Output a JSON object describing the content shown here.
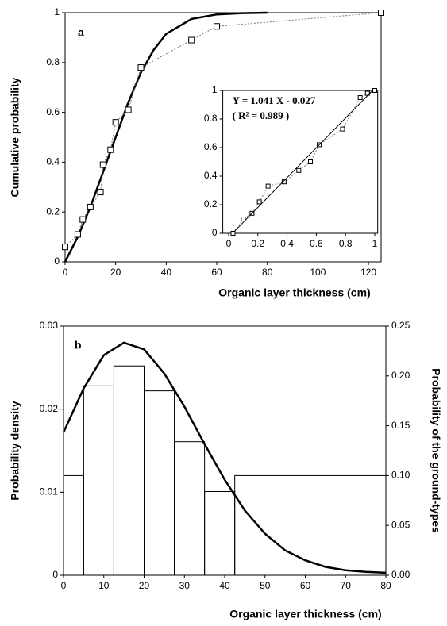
{
  "chart_data": [
    {
      "type": "line",
      "panel_label": "a",
      "xlabel": "Organic layer thickness (cm)",
      "ylabel": "Cumulative probability",
      "xlim": [
        0,
        125
      ],
      "ylim": [
        0,
        1
      ],
      "xticks": [
        0,
        20,
        40,
        60,
        80,
        100,
        120
      ],
      "yticks": [
        0,
        0.2,
        0.4,
        0.6,
        0.8,
        1
      ],
      "series": [
        {
          "color": "#000000",
          "style": "solid",
          "markers": false,
          "x": [
            0,
            5,
            10,
            15,
            20,
            25,
            30,
            35,
            40,
            50,
            60,
            70,
            80
          ],
          "values": [
            0,
            0.1,
            0.22,
            0.36,
            0.5,
            0.64,
            0.76,
            0.85,
            0.915,
            0.975,
            0.993,
            0.998,
            1
          ]
        },
        {
          "color": "#777777",
          "style": "dotted",
          "markers": true,
          "x": [
            0,
            5,
            7,
            10,
            14,
            15,
            18,
            20,
            25,
            30,
            50,
            60,
            125
          ],
          "values": [
            0.06,
            0.11,
            0.17,
            0.22,
            0.28,
            0.39,
            0.45,
            0.56,
            0.61,
            0.78,
            0.89,
            0.945,
            1
          ]
        }
      ]
    },
    {
      "type": "line",
      "annotations": [
        "Y = 1.041 X - 0.027",
        "( R² = 0.989 )"
      ],
      "xlim": [
        -0.04,
        1.02
      ],
      "ylim": [
        0,
        1
      ],
      "xticks": [
        0,
        0.2,
        0.4,
        0.6,
        0.8,
        1
      ],
      "yticks": [
        0,
        0.2,
        0.4,
        0.6,
        0.8,
        1
      ],
      "series": [
        {
          "color": "#777777",
          "style": "dotted",
          "markers": true,
          "x": [
            0.03,
            0.1,
            0.16,
            0.21,
            0.27,
            0.38,
            0.48,
            0.56,
            0.62,
            0.78,
            0.9,
            0.95,
            1
          ],
          "values": [
            0,
            0.1,
            0.14,
            0.22,
            0.33,
            0.36,
            0.44,
            0.5,
            0.62,
            0.73,
            0.95,
            0.98,
            1
          ]
        },
        {
          "color": "#000000",
          "style": "solid",
          "markers": false,
          "x": [
            0.03,
            0.985
          ],
          "values": [
            0.004,
            1
          ]
        }
      ]
    },
    {
      "type": "histogram",
      "panel_label": "b",
      "xlabel": "Organic layer thickness (cm)",
      "ylabel": "Probability density",
      "y2label": "Probability of the ground-types",
      "xlim": [
        0,
        80
      ],
      "ylim": [
        0,
        0.03
      ],
      "y2lim": [
        0,
        0.25
      ],
      "xticks": [
        0,
        10,
        20,
        30,
        40,
        50,
        60,
        70,
        80
      ],
      "yticks": [
        0,
        0.01,
        0.02,
        0.03
      ],
      "y2ticks": [
        {
          "value": 0,
          "label": "0.00"
        },
        {
          "value": 0.05,
          "label": "0.05"
        },
        {
          "value": 0.1,
          "label": "0.10"
        },
        {
          "value": 0.15,
          "label": "0.15"
        },
        {
          "value": 0.2,
          "label": "0.20"
        },
        {
          "value": 0.25,
          "label": "0.25"
        }
      ],
      "bins": [
        0,
        5,
        12.5,
        20,
        27.5,
        35,
        42.5,
        80
      ],
      "values": [
        0.1,
        0.19,
        0.21,
        0.185,
        0.134,
        0.084,
        0.1
      ],
      "axis": "y2",
      "series": [
        {
          "color": "#000000",
          "style": "solid",
          "markers": false,
          "x": [
            0,
            5,
            10,
            15,
            20,
            25,
            30,
            35,
            40,
            45,
            50,
            55,
            60,
            65,
            70,
            75,
            80
          ],
          "values": [
            0.0172,
            0.0225,
            0.0265,
            0.028,
            0.0272,
            0.0243,
            0.0203,
            0.0158,
            0.0115,
            0.0078,
            0.005,
            0.003,
            0.0018,
            0.001,
            0.0006,
            0.0004,
            0.0003
          ]
        }
      ]
    }
  ]
}
